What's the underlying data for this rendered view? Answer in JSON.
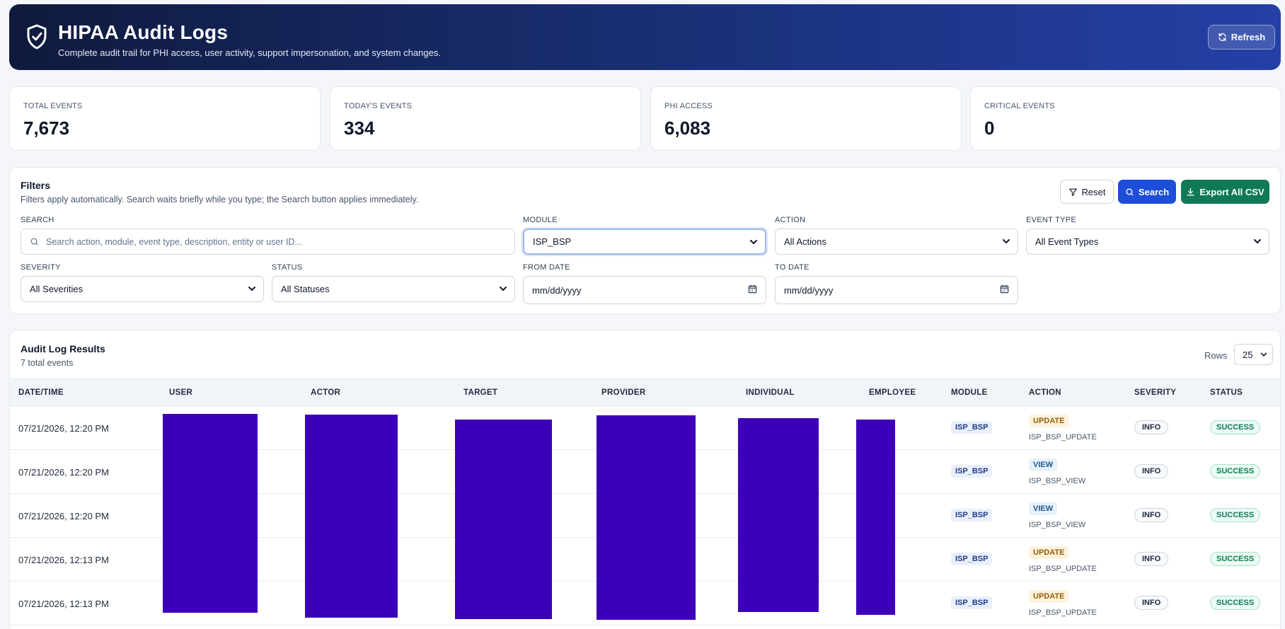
{
  "header": {
    "title": "HIPAA Audit Logs",
    "subtitle": "Complete audit trail for PHI access, user activity, support impersonation, and system changes.",
    "refresh_label": "Refresh"
  },
  "stats": [
    {
      "label": "TOTAL EVENTS",
      "value": "7,673"
    },
    {
      "label": "TODAY'S EVENTS",
      "value": "334"
    },
    {
      "label": "PHI ACCESS",
      "value": "6,083"
    },
    {
      "label": "CRITICAL EVENTS",
      "value": "0"
    }
  ],
  "filters": {
    "title": "Filters",
    "description": "Filters apply automatically. Search waits briefly while you type; the Search button applies immediately.",
    "reset_label": "Reset",
    "search_label": "Search",
    "export_label": "Export All CSV",
    "search": {
      "label": "SEARCH",
      "placeholder": "Search action, module, event type, description, entity or user ID..."
    },
    "module": {
      "label": "MODULE",
      "value": "ISP_BSP"
    },
    "action": {
      "label": "ACTION",
      "value": "All Actions"
    },
    "event_type": {
      "label": "EVENT TYPE",
      "value": "All Event Types"
    },
    "severity": {
      "label": "SEVERITY",
      "value": "All Severities"
    },
    "status": {
      "label": "STATUS",
      "value": "All Statuses"
    },
    "from_date": {
      "label": "FROM DATE",
      "value": "mm/dd/yyyy"
    },
    "to_date": {
      "label": "TO DATE",
      "value": "mm/dd/yyyy"
    }
  },
  "results": {
    "title": "Audit Log Results",
    "count": "7 total events",
    "rows_label": "Rows",
    "rows_value": "25",
    "columns": [
      "DATE/TIME",
      "USER",
      "ACTOR",
      "TARGET",
      "PROVIDER",
      "INDIVIDUAL",
      "EMPLOYEE",
      "MODULE",
      "ACTION",
      "SEVERITY",
      "STATUS"
    ],
    "rows": [
      {
        "datetime": "07/21/2026, 12:20 PM",
        "module": "ISP_BSP",
        "action": "UPDATE",
        "action_detail": "ISP_BSP_UPDATE",
        "severity": "INFO",
        "status": "SUCCESS"
      },
      {
        "datetime": "07/21/2026, 12:20 PM",
        "module": "ISP_BSP",
        "action": "VIEW",
        "action_detail": "ISP_BSP_VIEW",
        "severity": "INFO",
        "status": "SUCCESS"
      },
      {
        "datetime": "07/21/2026, 12:20 PM",
        "module": "ISP_BSP",
        "action": "VIEW",
        "action_detail": "ISP_BSP_VIEW",
        "severity": "INFO",
        "status": "SUCCESS"
      },
      {
        "datetime": "07/21/2026, 12:13 PM",
        "module": "ISP_BSP",
        "action": "UPDATE",
        "action_detail": "ISP_BSP_UPDATE",
        "severity": "INFO",
        "status": "SUCCESS"
      },
      {
        "datetime": "07/21/2026, 12:13 PM",
        "module": "ISP_BSP",
        "action": "UPDATE",
        "action_detail": "ISP_BSP_UPDATE",
        "severity": "INFO",
        "status": "SUCCESS"
      }
    ]
  },
  "colors": {
    "brand_blue": "#1d4ed8",
    "export_green": "#0f7a55",
    "redaction": "#3c00b9"
  }
}
